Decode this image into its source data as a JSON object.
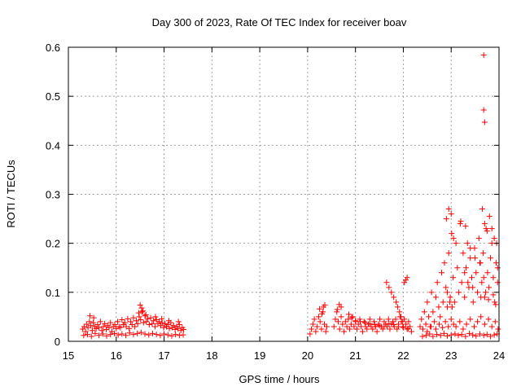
{
  "chart_data": {
    "type": "scatter",
    "title": "Day 300 of 2023, Rate Of TEC Index for receiver boav",
    "xlabel": "GPS time / hours",
    "ylabel": "ROTI / TECUs",
    "xlim": [
      15,
      24
    ],
    "ylim": [
      0,
      0.6
    ],
    "x_ticks": [
      "15",
      "16",
      "17",
      "18",
      "19",
      "20",
      "21",
      "22",
      "23",
      "24"
    ],
    "y_ticks": [
      "0",
      "0.1",
      "0.2",
      "0.3",
      "0.4",
      "0.5",
      "0.6"
    ],
    "grid": true,
    "marker": "plus",
    "color": "#ff0000",
    "series": [
      {
        "x": [
          15.3,
          15.33,
          15.36,
          15.38,
          15.41,
          15.44,
          15.47,
          15.5,
          15.52,
          15.55,
          15.58,
          15.61,
          15.64,
          15.67,
          15.7,
          15.73,
          15.76,
          15.79,
          15.82,
          15.85,
          15.88,
          15.91,
          15.94,
          15.97,
          16.0,
          16.03,
          16.06,
          16.09,
          16.12,
          16.15,
          16.18,
          16.21,
          16.24,
          16.27,
          16.3,
          16.33,
          16.36,
          16.39,
          16.42,
          16.45,
          16.48,
          16.51,
          16.54,
          16.57,
          16.6,
          16.63,
          16.66,
          16.69,
          16.72,
          16.75,
          16.78,
          16.81,
          16.84,
          16.87,
          16.9,
          16.93,
          16.96,
          16.99,
          17.02,
          17.05,
          17.08,
          17.11,
          17.14,
          17.17,
          17.2,
          17.23,
          17.26,
          17.29,
          17.32,
          17.35,
          17.38,
          17.41,
          15.32,
          15.4,
          15.48,
          15.56,
          15.64,
          15.72,
          15.8,
          15.88,
          15.96,
          16.04,
          16.12,
          16.2,
          16.28,
          16.36,
          16.44,
          16.52,
          16.6,
          16.68,
          16.76,
          16.84,
          16.92,
          17.0,
          17.08,
          17.16,
          17.24,
          17.32,
          17.4,
          15.45,
          15.53,
          16.5,
          16.53,
          16.56,
          16.47,
          16.62,
          16.82,
          16.95,
          17.1,
          17.3,
          20.05,
          20.08,
          20.11,
          20.14,
          20.17,
          20.2,
          20.23,
          20.26,
          20.29,
          20.32,
          20.35,
          20.38,
          20.25,
          20.33,
          20.36,
          20.3,
          20.4,
          20.55,
          20.58,
          20.61,
          20.64,
          20.67,
          20.7,
          20.73,
          20.76,
          20.79,
          20.82,
          20.85,
          20.88,
          20.91,
          20.94,
          20.97,
          21.0,
          21.03,
          21.06,
          21.09,
          21.12,
          21.15,
          21.18,
          21.21,
          21.24,
          21.27,
          21.3,
          21.33,
          21.36,
          21.39,
          21.42,
          21.45,
          21.48,
          21.51,
          21.54,
          21.57,
          21.6,
          21.63,
          21.66,
          21.69,
          21.72,
          21.75,
          21.78,
          21.81,
          21.84,
          21.87,
          21.9,
          21.93,
          21.96,
          21.99,
          22.02,
          22.05,
          22.08,
          22.11,
          22.14,
          22.17,
          20.62,
          20.66,
          20.7,
          20.86,
          20.92,
          21.0,
          21.1,
          21.2,
          21.3,
          21.4,
          21.5,
          21.6,
          21.7,
          21.8,
          21.9,
          22.0,
          22.1,
          21.65,
          21.7,
          21.75,
          21.8,
          21.85,
          21.88,
          21.92,
          21.95,
          21.98,
          22.02,
          22.05,
          22.08,
          22.35,
          22.38,
          22.41,
          22.44,
          22.47,
          22.5,
          22.53,
          22.56,
          22.59,
          22.62,
          22.65,
          22.68,
          22.71,
          22.74,
          22.77,
          22.8,
          22.83,
          22.86,
          22.89,
          22.92,
          22.95,
          22.98,
          23.01,
          23.04,
          23.07,
          23.1,
          23.13,
          23.16,
          23.19,
          23.22,
          23.25,
          23.28,
          23.31,
          23.34,
          23.37,
          23.4,
          23.43,
          23.46,
          23.49,
          23.52,
          23.55,
          23.58,
          23.61,
          23.64,
          23.67,
          23.7,
          23.73,
          23.76,
          23.79,
          23.82,
          23.85,
          23.88,
          23.91,
          23.94,
          23.97,
          22.4,
          22.48,
          22.55,
          22.62,
          22.7,
          22.78,
          22.85,
          22.92,
          23.0,
          23.08,
          23.15,
          23.22,
          23.3,
          23.38,
          23.45,
          23.52,
          23.6,
          23.68,
          23.75,
          23.82,
          23.9,
          23.96,
          22.5,
          22.58,
          22.68,
          22.75,
          22.82,
          22.88,
          22.94,
          23.0,
          23.05,
          23.1,
          23.18,
          23.25,
          23.32,
          23.4,
          23.48,
          23.55,
          23.62,
          23.7,
          23.78,
          23.85,
          23.92,
          23.98,
          22.9,
          22.95,
          23.0,
          23.05,
          23.2,
          23.3,
          23.4,
          23.5,
          23.6,
          23.65,
          23.7,
          23.75,
          23.8,
          23.85,
          23.9,
          23.95,
          22.92,
          22.97,
          23.02,
          23.28,
          23.35,
          23.45,
          23.62,
          23.68,
          23.72,
          23.78,
          23.88,
          23.93,
          23.97,
          23.68,
          23.68,
          23.7
        ],
        "y": [
          0.025,
          0.03,
          0.02,
          0.035,
          0.028,
          0.04,
          0.032,
          0.022,
          0.038,
          0.03,
          0.026,
          0.034,
          0.028,
          0.04,
          0.022,
          0.03,
          0.036,
          0.024,
          0.032,
          0.028,
          0.038,
          0.02,
          0.03,
          0.034,
          0.026,
          0.04,
          0.03,
          0.028,
          0.044,
          0.034,
          0.038,
          0.03,
          0.046,
          0.026,
          0.04,
          0.034,
          0.048,
          0.03,
          0.042,
          0.036,
          0.05,
          0.044,
          0.06,
          0.038,
          0.052,
          0.04,
          0.046,
          0.034,
          0.048,
          0.036,
          0.042,
          0.03,
          0.044,
          0.036,
          0.04,
          0.032,
          0.038,
          0.028,
          0.036,
          0.03,
          0.034,
          0.026,
          0.038,
          0.028,
          0.032,
          0.024,
          0.03,
          0.026,
          0.034,
          0.022,
          0.028,
          0.024,
          0.012,
          0.014,
          0.01,
          0.016,
          0.012,
          0.015,
          0.011,
          0.014,
          0.016,
          0.013,
          0.015,
          0.012,
          0.017,
          0.014,
          0.016,
          0.018,
          0.015,
          0.013,
          0.016,
          0.014,
          0.012,
          0.015,
          0.013,
          0.011,
          0.014,
          0.012,
          0.013,
          0.052,
          0.048,
          0.074,
          0.068,
          0.062,
          0.058,
          0.054,
          0.05,
          0.046,
          0.042,
          0.04,
          0.015,
          0.025,
          0.035,
          0.045,
          0.02,
          0.03,
          0.05,
          0.04,
          0.025,
          0.06,
          0.035,
          0.02,
          0.066,
          0.07,
          0.074,
          0.056,
          0.03,
          0.03,
          0.045,
          0.06,
          0.04,
          0.025,
          0.05,
          0.035,
          0.02,
          0.04,
          0.03,
          0.045,
          0.025,
          0.035,
          0.05,
          0.03,
          0.04,
          0.025,
          0.035,
          0.045,
          0.03,
          0.02,
          0.04,
          0.03,
          0.025,
          0.035,
          0.045,
          0.03,
          0.025,
          0.04,
          0.03,
          0.02,
          0.035,
          0.045,
          0.03,
          0.025,
          0.04,
          0.035,
          0.03,
          0.045,
          0.025,
          0.035,
          0.04,
          0.03,
          0.045,
          0.025,
          0.035,
          0.05,
          0.04,
          0.03,
          0.045,
          0.035,
          0.025,
          0.04,
          0.03,
          0.02,
          0.065,
          0.075,
          0.07,
          0.055,
          0.048,
          0.042,
          0.04,
          0.038,
          0.036,
          0.034,
          0.032,
          0.03,
          0.036,
          0.034,
          0.03,
          0.028,
          0.026,
          0.12,
          0.11,
          0.1,
          0.09,
          0.08,
          0.07,
          0.06,
          0.05,
          0.04,
          0.12,
          0.125,
          0.13,
          0.03,
          0.045,
          0.025,
          0.06,
          0.035,
          0.08,
          0.05,
          0.03,
          0.1,
          0.06,
          0.04,
          0.09,
          0.12,
          0.07,
          0.05,
          0.14,
          0.08,
          0.16,
          0.11,
          0.07,
          0.18,
          0.09,
          0.22,
          0.13,
          0.08,
          0.2,
          0.15,
          0.1,
          0.24,
          0.12,
          0.18,
          0.09,
          0.15,
          0.2,
          0.11,
          0.17,
          0.13,
          0.08,
          0.19,
          0.14,
          0.1,
          0.21,
          0.16,
          0.12,
          0.18,
          0.09,
          0.23,
          0.14,
          0.11,
          0.17,
          0.2,
          0.13,
          0.08,
          0.16,
          0.12,
          0.01,
          0.012,
          0.015,
          0.01,
          0.014,
          0.012,
          0.016,
          0.011,
          0.013,
          0.015,
          0.012,
          0.014,
          0.01,
          0.016,
          0.013,
          0.011,
          0.015,
          0.012,
          0.014,
          0.01,
          0.013,
          0.015,
          0.02,
          0.03,
          0.025,
          0.035,
          0.028,
          0.04,
          0.03,
          0.045,
          0.035,
          0.03,
          0.04,
          0.025,
          0.035,
          0.045,
          0.03,
          0.04,
          0.05,
          0.035,
          0.045,
          0.03,
          0.04,
          0.025,
          0.25,
          0.27,
          0.26,
          0.21,
          0.245,
          0.235,
          0.19,
          0.17,
          0.16,
          0.27,
          0.24,
          0.225,
          0.255,
          0.23,
          0.21,
          0.2,
          0.1,
          0.08,
          0.07,
          0.14,
          0.12,
          0.11,
          0.09,
          0.13,
          0.1,
          0.085,
          0.095,
          0.075,
          0.15,
          0.584,
          0.472,
          0.447
        ]
      }
    ]
  }
}
